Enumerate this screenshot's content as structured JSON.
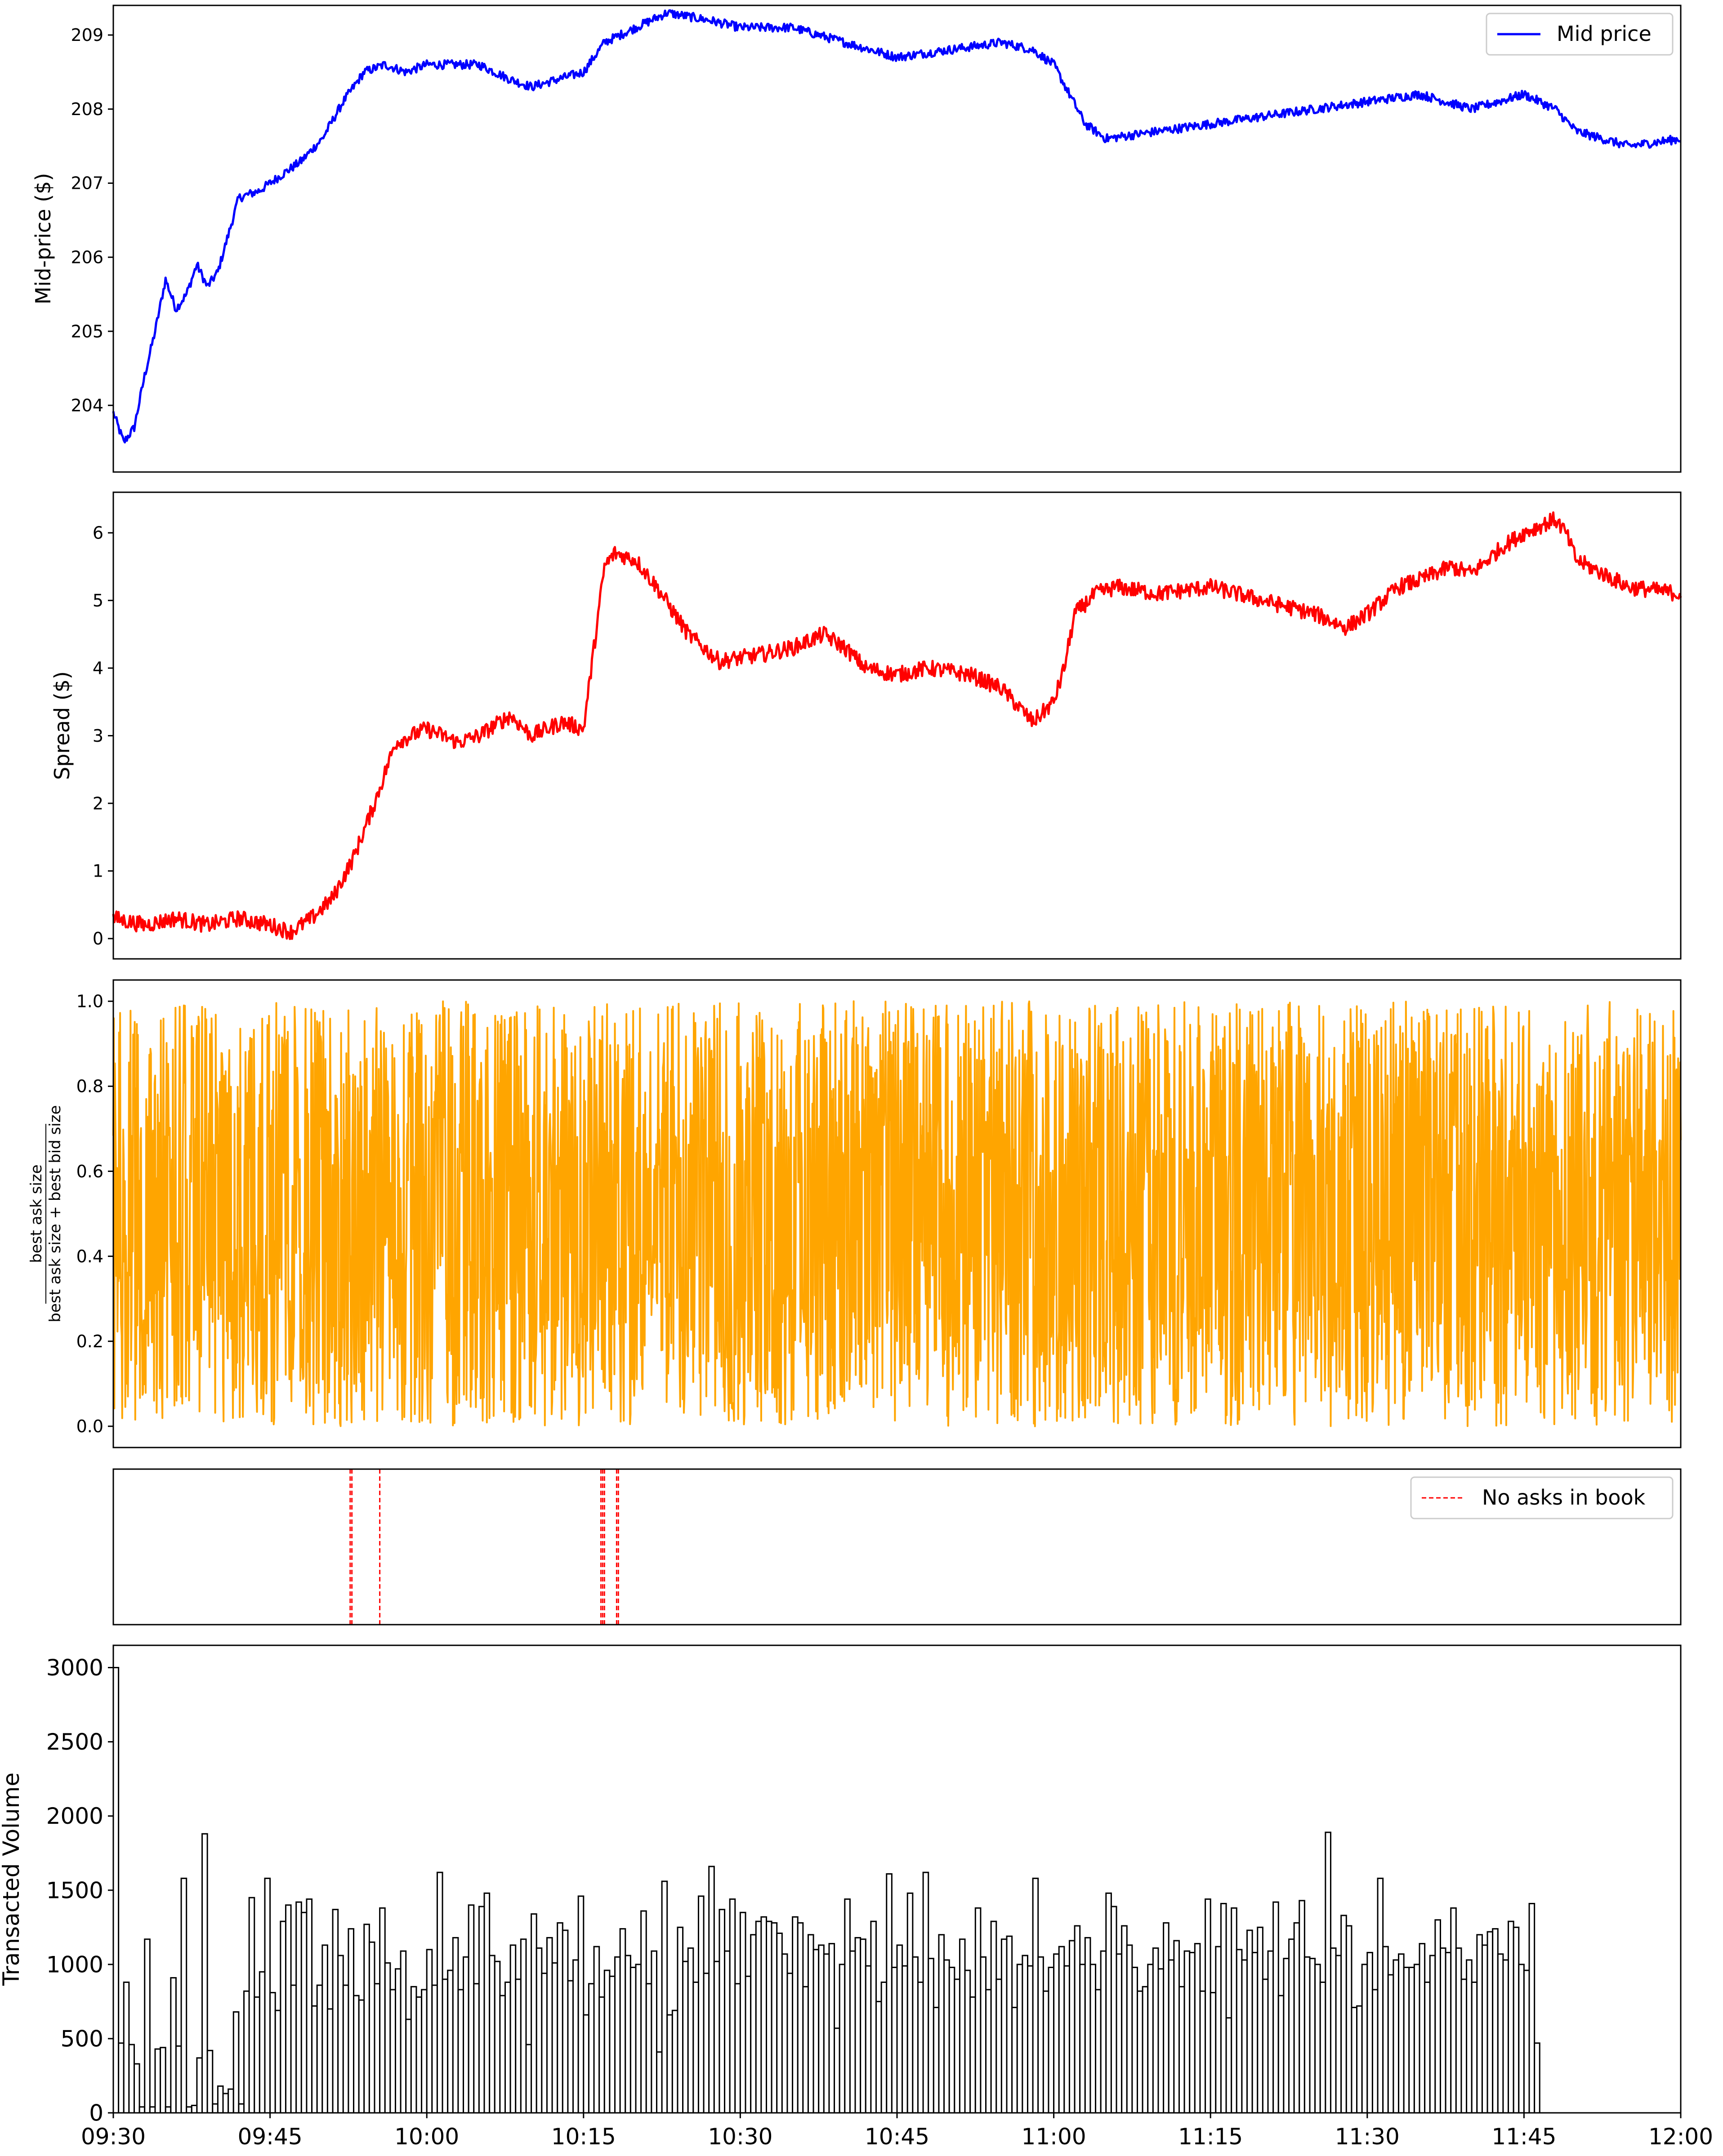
{
  "figure": {
    "x_tick_labels": [
      "09:30",
      "09:45",
      "10:00",
      "10:15",
      "10:30",
      "10:45",
      "11:00",
      "11:15",
      "11:30",
      "11:45",
      "12:00"
    ]
  },
  "chart_data": [
    {
      "type": "line",
      "title": "",
      "xlabel": "",
      "ylabel": "Mid-price ($)",
      "x_range": [
        "09:30",
        "12:00"
      ],
      "ylim": [
        203.1,
        209.4
      ],
      "yticks": [
        204,
        205,
        206,
        207,
        208,
        209
      ],
      "legend": {
        "position": "top-right",
        "entries": [
          "Mid price"
        ]
      },
      "color": "#0000ff",
      "series": [
        {
          "name": "Mid price",
          "x": [
            "09:30",
            "09:31",
            "09:32",
            "09:33",
            "09:34",
            "09:35",
            "09:36",
            "09:37",
            "09:38",
            "09:39",
            "09:40",
            "09:41",
            "09:42",
            "09:44",
            "09:45",
            "09:46",
            "09:48",
            "09:50",
            "09:52",
            "09:54",
            "09:56",
            "09:58",
            "10:00",
            "10:05",
            "10:08",
            "10:10",
            "10:15",
            "10:17",
            "10:20",
            "10:23",
            "10:27",
            "10:30",
            "10:35",
            "10:40",
            "10:45",
            "10:50",
            "10:55",
            "10:58",
            "11:00",
            "11:03",
            "11:05",
            "11:10",
            "11:15",
            "11:20",
            "11:25",
            "11:30",
            "11:35",
            "11:40",
            "11:45",
            "11:48",
            "11:50",
            "11:55",
            "12:00"
          ],
          "y": [
            203.9,
            203.5,
            203.7,
            204.4,
            205.0,
            205.7,
            205.3,
            205.5,
            205.9,
            205.6,
            205.8,
            206.3,
            206.8,
            206.9,
            207.0,
            207.1,
            207.3,
            207.6,
            208.1,
            208.5,
            208.6,
            208.5,
            208.6,
            208.6,
            208.4,
            208.3,
            208.5,
            208.9,
            209.1,
            209.3,
            209.2,
            209.1,
            209.1,
            208.9,
            208.7,
            208.8,
            208.9,
            208.8,
            208.6,
            207.8,
            207.6,
            207.7,
            207.8,
            207.9,
            208.0,
            208.1,
            208.2,
            208.0,
            208.2,
            208.0,
            207.7,
            207.5,
            207.6
          ]
        }
      ]
    },
    {
      "type": "line",
      "title": "",
      "xlabel": "",
      "ylabel": "Spread ($)",
      "x_range": [
        "09:30",
        "12:00"
      ],
      "ylim": [
        -0.3,
        6.6
      ],
      "yticks": [
        0,
        1,
        2,
        3,
        4,
        5,
        6
      ],
      "color": "#ff0000",
      "series": [
        {
          "name": "",
          "x": [
            "09:30",
            "09:33",
            "09:36",
            "09:39",
            "09:42",
            "09:45",
            "09:47",
            "09:49",
            "09:51",
            "09:53",
            "09:55",
            "09:57",
            "10:00",
            "10:03",
            "10:05",
            "10:08",
            "10:10",
            "10:13",
            "10:15",
            "10:17",
            "10:18",
            "10:20",
            "10:22",
            "10:25",
            "10:28",
            "10:32",
            "10:35",
            "10:38",
            "10:40",
            "10:42",
            "10:45",
            "10:48",
            "10:52",
            "10:55",
            "10:58",
            "11:00",
            "11:01",
            "11:02",
            "11:04",
            "11:06",
            "11:10",
            "11:15",
            "11:20",
            "11:25",
            "11:28",
            "11:30",
            "11:33",
            "11:35",
            "11:38",
            "11:40",
            "11:43",
            "11:45",
            "11:48",
            "11:49",
            "11:50",
            "11:55",
            "12:00"
          ],
          "y": [
            0.3,
            0.2,
            0.3,
            0.2,
            0.3,
            0.2,
            0.1,
            0.3,
            0.6,
            1.2,
            2.0,
            2.9,
            3.1,
            2.9,
            3.0,
            3.3,
            3.0,
            3.2,
            3.1,
            5.5,
            5.7,
            5.6,
            5.2,
            4.5,
            4.1,
            4.2,
            4.3,
            4.5,
            4.3,
            4.0,
            3.9,
            4.0,
            3.9,
            3.7,
            3.2,
            3.5,
            4.0,
            4.8,
            5.1,
            5.2,
            5.1,
            5.2,
            5.0,
            4.8,
            4.6,
            4.8,
            5.2,
            5.3,
            5.5,
            5.4,
            5.8,
            6.0,
            6.2,
            6.0,
            5.6,
            5.2,
            5.1
          ]
        }
      ]
    },
    {
      "type": "line",
      "title": "",
      "xlabel": "",
      "ylabel": "best ask size / (best ask size + best bid size)",
      "ylabel_num": "best ask size",
      "ylabel_den": "best ask size + best bid size",
      "x_range": [
        "09:30",
        "12:00"
      ],
      "ylim": [
        -0.05,
        1.05
      ],
      "yticks": [
        "0.0",
        "0.2",
        "0.4",
        "0.6",
        "0.8",
        "1.0"
      ],
      "color": "#ffa500",
      "description_of_series": "rapidly oscillating ratio spanning roughly 0.0 to 1.0 throughout the session",
      "series": [
        {
          "name": "",
          "min": 0.0,
          "max": 1.0,
          "mean": 0.5
        }
      ]
    },
    {
      "type": "line",
      "title": "",
      "xlabel": "",
      "ylabel": "",
      "x_range": [
        "09:30",
        "12:00"
      ],
      "legend": {
        "position": "top-right",
        "entries": [
          "No asks in book"
        ]
      },
      "color": "#ff0000",
      "series": [
        {
          "name": "No asks in book",
          "event_times": [
            "09:52:40",
            "09:52:50",
            "09:55:30",
            "10:16:40",
            "10:16:50",
            "10:17:00",
            "10:18:10",
            "10:18:20"
          ]
        }
      ]
    },
    {
      "type": "bar",
      "title": "",
      "xlabel": "",
      "ylabel": "Transacted Volume",
      "x_range": [
        "09:30",
        "12:00"
      ],
      "bar_width_minutes": 0.5,
      "ylim": [
        0,
        3150
      ],
      "yticks": [
        0,
        500,
        1000,
        1500,
        2000,
        2500,
        3000
      ],
      "color": "#000000",
      "series": [
        {
          "name": "",
          "values_per_30s": [
            3000,
            470,
            880,
            460,
            330,
            40,
            1170,
            40,
            430,
            440,
            40,
            910,
            450,
            1580,
            40,
            50,
            370,
            1880,
            420,
            60,
            180,
            130,
            160,
            680,
            60,
            820,
            1450,
            780,
            950,
            1580,
            810,
            690,
            1290,
            1400,
            860,
            1420,
            1350,
            1440,
            720,
            860,
            1130,
            700,
            1370,
            1060,
            860,
            1240,
            790,
            760,
            1270,
            1150,
            870,
            1380,
            1010,
            830,
            970,
            1090,
            630,
            850,
            780,
            830,
            1100,
            860,
            1620,
            900,
            960,
            1180,
            830,
            1050,
            1400,
            870,
            1390,
            1480,
            1060,
            1020,
            790,
            880,
            1130,
            900,
            1170,
            460,
            1340,
            1110,
            940,
            1180,
            1010,
            1280,
            1230,
            890,
            1030,
            1460,
            660,
            870,
            1120,
            780,
            960,
            920,
            1050,
            1240,
            1060,
            980,
            1000,
            1360,
            870,
            1090,
            410,
            1560,
            660,
            690,
            1250,
            1020,
            1110,
            880,
            1460,
            940,
            1660,
            1020,
            1370,
            1090,
            1440,
            870,
            1350,
            920,
            1200,
            1290,
            1320,
            1290,
            1280,
            1210,
            1070,
            940,
            1320,
            1280,
            850,
            1200,
            1100,
            1130,
            1070,
            1140,
            570,
            1000,
            1440,
            1090,
            1180,
            1170,
            990,
            1290,
            750,
            880,
            1610,
            980,
            1130,
            990,
            1480,
            1050,
            880,
            1620,
            1040,
            710,
            1200,
            1030,
            980,
            900,
            1170,
            960,
            780,
            1380,
            1050,
            830,
            1290,
            900,
            1170,
            1190,
            710,
            1000,
            1060,
            990,
            1580,
            1050,
            820,
            980,
            1070,
            1120,
            990,
            1160,
            1260,
            1000,
            1180,
            1000,
            830,
            1090,
            1480,
            1390,
            1070,
            1260,
            1130,
            980,
            820,
            850,
            1000,
            1110,
            970,
            1280,
            1030,
            1160,
            850,
            1090,
            1080,
            1140,
            820,
            1440,
            810,
            1120,
            1410,
            640,
            1380,
            1100,
            1030,
            1230,
            1080,
            1250,
            900,
            1090,
            1420,
            790,
            1040,
            1170,
            1280,
            1430,
            1050,
            1040,
            1000,
            880,
            1890,
            1110,
            1060,
            1330,
            1260,
            710,
            720,
            1000,
            1080,
            830,
            1580,
            1120,
            930,
            1030,
            1070,
            980,
            980,
            1000,
            1140,
            880,
            1060,
            1300,
            1110,
            1080,
            1380,
            1110,
            900,
            1030,
            880,
            1200,
            1130,
            1220,
            1240,
            1070,
            1030,
            1290,
            1250,
            1000,
            960,
            1410,
            470
          ]
        }
      ]
    }
  ]
}
